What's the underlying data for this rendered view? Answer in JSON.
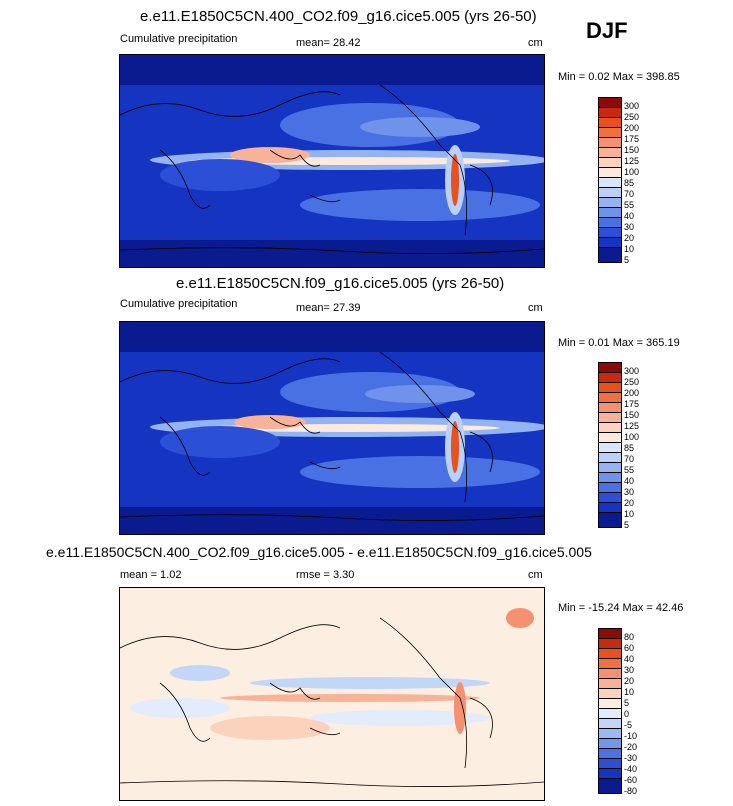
{
  "season": "DJF",
  "panels": [
    {
      "title": "e.e11.E1850C5CN.400_CO2.f09_g16.cice5.005 (yrs 26-50)",
      "left": "Cumulative precipitation",
      "mid": "mean=  28.42",
      "unit": "cm",
      "minmax": "Min =  0.02 Max = 398.85",
      "levels": [
        "300",
        "250",
        "200",
        "175",
        "150",
        "125",
        "100",
        "85",
        "70",
        "55",
        "40",
        "30",
        "20",
        "10",
        "5"
      ],
      "colors": [
        "#8b0a0a",
        "#c8290f",
        "#e8501e",
        "#f07040",
        "#f59070",
        "#f8b298",
        "#fbd3bd",
        "#fcebdc",
        "#d8e6fb",
        "#b9d0f7",
        "#93b3f1",
        "#6f93ea",
        "#4a71e3",
        "#2c4fd8",
        "#1634c2",
        "#091b8f"
      ]
    },
    {
      "title": "e.e11.E1850C5CN.f09_g16.cice5.005 (yrs 26-50)",
      "left": "Cumulative precipitation",
      "mid": "mean=  27.39",
      "unit": "cm",
      "minmax": "Min =  0.01 Max = 365.19",
      "levels": [
        "300",
        "250",
        "200",
        "175",
        "150",
        "125",
        "100",
        "85",
        "70",
        "55",
        "40",
        "30",
        "20",
        "10",
        "5"
      ],
      "colors": [
        "#8b0a0a",
        "#c8290f",
        "#e8501e",
        "#f07040",
        "#f59070",
        "#f8b298",
        "#fbd3bd",
        "#fcebdc",
        "#d8e6fb",
        "#b9d0f7",
        "#93b3f1",
        "#6f93ea",
        "#4a71e3",
        "#2c4fd8",
        "#1634c2",
        "#091b8f"
      ]
    },
    {
      "title": "e.e11.E1850C5CN.400_CO2.f09_g16.cice5.005 - e.e11.E1850C5CN.f09_g16.cice5.005",
      "left": "mean =   1.02",
      "mid": "rmse =   3.30",
      "unit": "cm",
      "minmax": "Min = -15.24 Max =  42.46",
      "levels": [
        "80",
        "60",
        "40",
        "30",
        "20",
        "10",
        "5",
        "0",
        "-5",
        "-10",
        "-20",
        "-30",
        "-40",
        "-60",
        "-80"
      ],
      "colors": [
        "#8b0a0a",
        "#c8290f",
        "#e8501e",
        "#f07040",
        "#f59070",
        "#f8b298",
        "#fbd3bd",
        "#fdeee2",
        "#e2ecfc",
        "#c2d6f8",
        "#9bbaf2",
        "#7396eb",
        "#4b72e2",
        "#2c4fd6",
        "#1634c2",
        "#091b8f"
      ]
    }
  ]
}
